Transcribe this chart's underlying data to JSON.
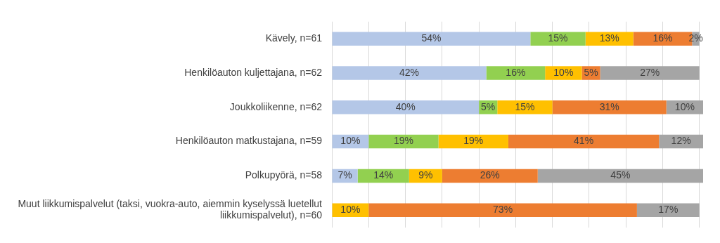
{
  "chart_data": {
    "type": "bar",
    "orientation": "horizontal",
    "stacked": true,
    "categories": [
      "Kävely, n=61",
      "Henkilöauton kuljettajana, n=62",
      "Joukkoliikenne, n=62",
      "Henkilöauton matkustajana, n=59",
      "Polkupyörä, n=58",
      "Muut liikkumispalvelut (taksi, vuokra-auto, aiemmin kyselyssä luetellut liikkumispalvelut), n=60"
    ],
    "series": [
      {
        "color": "#b4c7e7",
        "values": [
          54,
          42,
          40,
          10,
          7,
          null
        ],
        "value_labels": [
          "54%",
          "42%",
          "40%",
          "10%",
          "7%",
          null
        ]
      },
      {
        "color": "#92d050",
        "values": [
          15,
          16,
          5,
          19,
          14,
          null
        ],
        "value_labels": [
          "15%",
          "16%",
          "5%",
          "19%",
          "14%",
          null
        ]
      },
      {
        "color": "#ffc000",
        "values": [
          13,
          10,
          15,
          19,
          9,
          10
        ],
        "value_labels": [
          "13%",
          "10%",
          "15%",
          "19%",
          "9%",
          "10%"
        ]
      },
      {
        "color": "#ed7d31",
        "values": [
          16,
          5,
          31,
          41,
          26,
          73
        ],
        "value_labels": [
          "16%",
          "5%",
          "31%",
          "41%",
          "26%",
          "73%"
        ]
      },
      {
        "color": "#a5a5a5",
        "values": [
          2,
          27,
          10,
          12,
          45,
          17
        ],
        "value_labels": [
          "2%",
          "27%",
          "10%",
          "12%",
          "45%",
          "17%"
        ]
      }
    ],
    "xlim": [
      0,
      101
    ],
    "xticks": [
      {
        "value": 0,
        "label": null
      },
      {
        "value": 10,
        "label": null
      },
      {
        "value": 20,
        "label": null
      },
      {
        "value": 30,
        "label": null
      },
      {
        "value": 40,
        "label": null
      },
      {
        "value": 50,
        "label": null
      },
      {
        "value": 60,
        "label": null
      },
      {
        "value": 70,
        "label": null
      },
      {
        "value": 80,
        "label": null
      },
      {
        "value": 90,
        "label": null
      },
      {
        "value": 100,
        "label": null
      }
    ],
    "tick_labels": "y",
    "grid": "x",
    "legend": false
  }
}
